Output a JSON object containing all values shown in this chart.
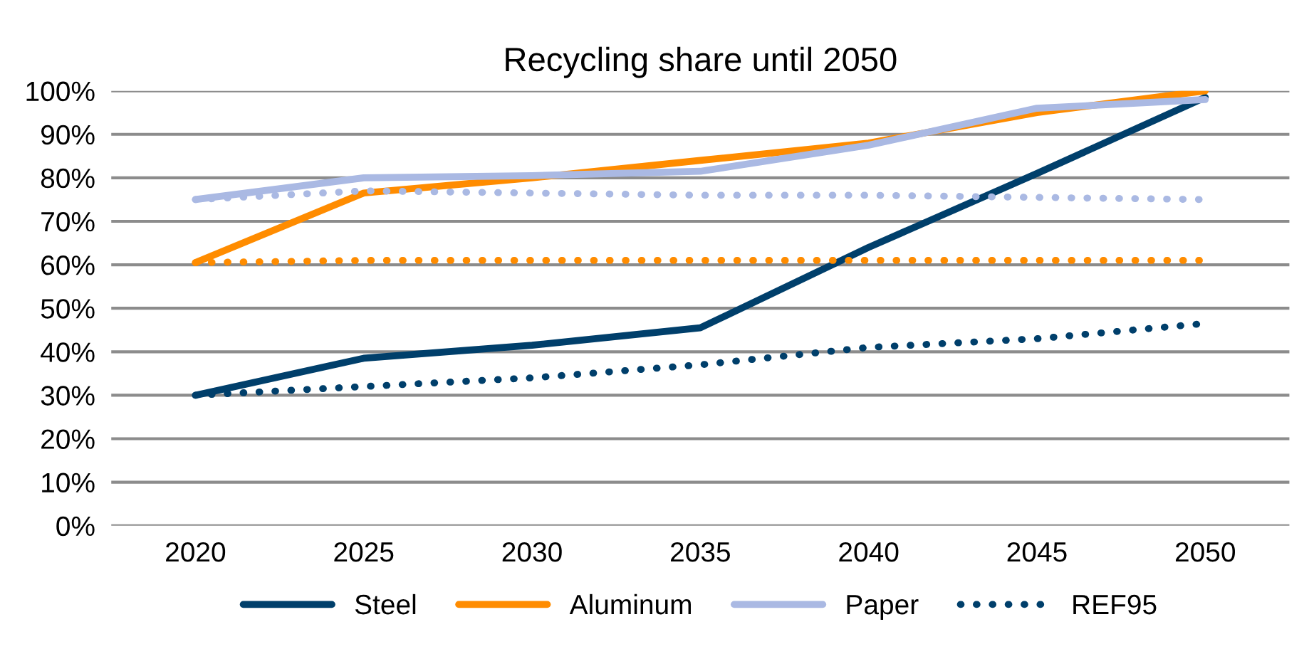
{
  "chart_data": {
    "type": "line",
    "title": "Recycling share until 2050",
    "categories": [
      "2020",
      "2025",
      "2030",
      "2035",
      "2040",
      "2045",
      "2050"
    ],
    "series": [
      {
        "name": "Steel",
        "color": "#003f6b",
        "line_style": "solid",
        "values": [
          30,
          38.5,
          41.5,
          45.5,
          64,
          81,
          98.5
        ]
      },
      {
        "name": "Aluminum",
        "color": "#ff8c00",
        "line_style": "solid",
        "values": [
          60.5,
          76.5,
          80,
          84,
          88,
          95,
          100
        ]
      },
      {
        "name": "Paper",
        "color": "#aab9e3",
        "line_style": "solid",
        "values": [
          75,
          80,
          80.5,
          81.5,
          87.5,
          96,
          98
        ]
      },
      {
        "name": "REF95",
        "color": "#003f6b",
        "line_style": "dotted",
        "values": [
          30,
          32,
          34,
          37,
          41,
          43,
          46.5
        ]
      },
      {
        "color": "#ff8c00",
        "line_style": "dotted",
        "values": [
          60.5,
          61,
          61,
          61,
          61,
          61,
          61
        ]
      },
      {
        "color": "#aab9e3",
        "line_style": "dotted",
        "values": [
          75,
          77,
          76.5,
          76,
          76,
          75.5,
          75
        ]
      }
    ],
    "ylim": [
      0,
      100
    ],
    "yticks": [
      {
        "value": 0,
        "label": "0%"
      },
      {
        "value": 10,
        "label": "10%"
      },
      {
        "value": 20,
        "label": "20%"
      },
      {
        "value": 30,
        "label": "30%"
      },
      {
        "value": 40,
        "label": "40%"
      },
      {
        "value": 50,
        "label": "50%"
      },
      {
        "value": 60,
        "label": "60%"
      },
      {
        "value": 70,
        "label": "70%"
      },
      {
        "value": 80,
        "label": "80%"
      },
      {
        "value": 90,
        "label": "90%"
      },
      {
        "value": 100,
        "label": "100%"
      }
    ],
    "grid": "y",
    "legend": "bottom",
    "marker": "none"
  }
}
